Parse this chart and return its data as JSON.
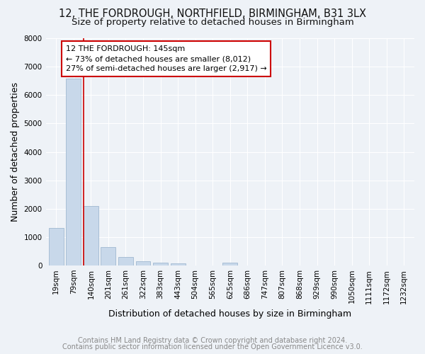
{
  "title_line1": "12, THE FORDROUGH, NORTHFIELD, BIRMINGHAM, B31 3LX",
  "title_line2": "Size of property relative to detached houses in Birmingham",
  "xlabel": "Distribution of detached houses by size in Birmingham",
  "ylabel": "Number of detached properties",
  "categories": [
    "19sqm",
    "79sqm",
    "140sqm",
    "201sqm",
    "261sqm",
    "322sqm",
    "383sqm",
    "443sqm",
    "504sqm",
    "565sqm",
    "625sqm",
    "686sqm",
    "747sqm",
    "807sqm",
    "868sqm",
    "929sqm",
    "990sqm",
    "1050sqm",
    "1111sqm",
    "1172sqm",
    "1232sqm"
  ],
  "values": [
    1320,
    6580,
    2090,
    650,
    295,
    140,
    100,
    75,
    0,
    0,
    110,
    0,
    0,
    0,
    0,
    0,
    0,
    0,
    0,
    0,
    0
  ],
  "bar_color": "#c8d8ea",
  "bar_edge_color": "#a0b8d0",
  "marker_line_color": "#cc0000",
  "annotation_box_color": "#cc0000",
  "annotation_text": "12 THE FORDROUGH: 145sqm\n← 73% of detached houses are smaller (8,012)\n27% of semi-detached houses are larger (2,917) →",
  "footer_line1": "Contains HM Land Registry data © Crown copyright and database right 2024.",
  "footer_line2": "Contains public sector information licensed under the Open Government Licence v3.0.",
  "ylim": [
    0,
    8000
  ],
  "yticks": [
    0,
    1000,
    2000,
    3000,
    4000,
    5000,
    6000,
    7000,
    8000
  ],
  "background_color": "#eef2f7",
  "grid_color": "#ffffff",
  "title_fontsize": 10.5,
  "subtitle_fontsize": 9.5,
  "axis_label_fontsize": 9,
  "tick_fontsize": 7.5,
  "annotation_fontsize": 8,
  "footer_fontsize": 7
}
